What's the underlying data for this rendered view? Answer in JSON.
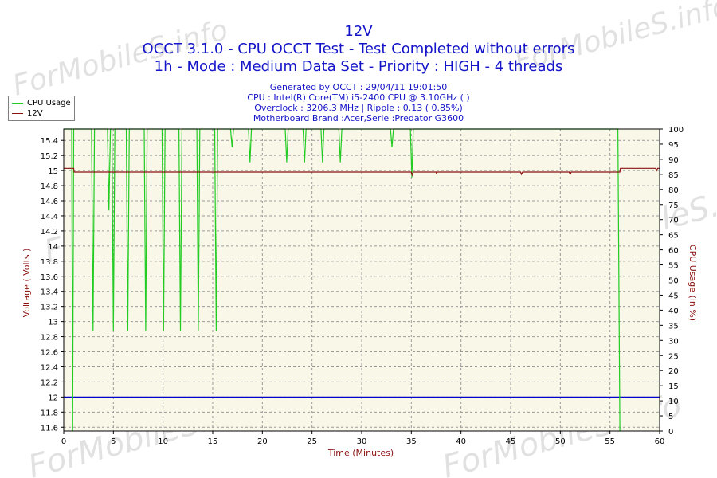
{
  "chart_data": {
    "type": "line",
    "title": "12V",
    "subtitle": [
      "OCCT 3.1.0 - CPU OCCT Test - Test Completed without errors",
      "1h - Mode : Medium Data Set - Priority : HIGH - 4 threads"
    ],
    "info": [
      "Generated by OCCT : 29/04/11 19:01:50",
      "CPU : Intel(R) Core(TM) i5-2400 CPU @ 3.10GHz (  )",
      "Overclock : 3206.3 MHz | Ripple : 0.13 ( 0.85%)",
      "Motherboard Brand :Acer,Serie :Predator G3600"
    ],
    "xlabel": "Time (Minutes)",
    "ylabel": "Voltage ( Volts )",
    "y2label": "CPU Usage (in %)",
    "xlim": [
      0,
      60
    ],
    "ylim": [
      11.55,
      15.55
    ],
    "y2lim": [
      0,
      100
    ],
    "xticks": [
      0,
      5,
      10,
      15,
      20,
      25,
      30,
      35,
      40,
      45,
      50,
      55,
      60
    ],
    "yticks": [
      11.6,
      11.8,
      12,
      12.2,
      12.4,
      12.6,
      12.8,
      13,
      13.2,
      13.4,
      13.6,
      13.8,
      14,
      14.2,
      14.4,
      14.6,
      14.8,
      15,
      15.2,
      15.4
    ],
    "ytick_labels": [
      "11.6",
      "11.8",
      "12",
      "12.2",
      "12.4",
      "12.6",
      "12.8",
      "13",
      "13.2",
      "13.4",
      "13.6",
      "13.8",
      "14",
      "14.2",
      "14.4",
      "14.6",
      "14.8",
      "15",
      "15.2",
      "15.4"
    ],
    "y2ticks": [
      0,
      5,
      10,
      15,
      20,
      25,
      30,
      35,
      40,
      45,
      50,
      55,
      60,
      65,
      70,
      75,
      80,
      85,
      90,
      95,
      100
    ],
    "grid": true,
    "legend": "top-left",
    "reference_line": {
      "y": 12,
      "color": "#0000c8"
    },
    "series": [
      {
        "name": "CPU Usage",
        "axis": "right",
        "color": "#22cc22",
        "points": [
          [
            0,
            100
          ],
          [
            0.8,
            100
          ],
          [
            0.9,
            0
          ],
          [
            1.0,
            100
          ],
          [
            2.8,
            100
          ],
          [
            2.95,
            33
          ],
          [
            3.1,
            100
          ],
          [
            4.4,
            100
          ],
          [
            4.55,
            73
          ],
          [
            4.7,
            100
          ],
          [
            4.85,
            100
          ],
          [
            5.0,
            33
          ],
          [
            5.15,
            100
          ],
          [
            6.3,
            100
          ],
          [
            6.45,
            33
          ],
          [
            6.6,
            100
          ],
          [
            8.1,
            100
          ],
          [
            8.25,
            33
          ],
          [
            8.4,
            100
          ],
          [
            9.9,
            100
          ],
          [
            10.05,
            33
          ],
          [
            10.2,
            100
          ],
          [
            11.6,
            100
          ],
          [
            11.75,
            33
          ],
          [
            11.9,
            100
          ],
          [
            13.4,
            100
          ],
          [
            13.55,
            33
          ],
          [
            13.7,
            100
          ],
          [
            15.2,
            100
          ],
          [
            15.35,
            33
          ],
          [
            15.5,
            100
          ],
          [
            16.8,
            100
          ],
          [
            16.95,
            94
          ],
          [
            17.1,
            100
          ],
          [
            18.6,
            100
          ],
          [
            18.75,
            89
          ],
          [
            18.9,
            100
          ],
          [
            22.3,
            100
          ],
          [
            22.45,
            89
          ],
          [
            22.6,
            100
          ],
          [
            24.1,
            100
          ],
          [
            24.25,
            89
          ],
          [
            24.4,
            100
          ],
          [
            25.9,
            100
          ],
          [
            26.05,
            89
          ],
          [
            26.2,
            100
          ],
          [
            27.7,
            100
          ],
          [
            27.85,
            89
          ],
          [
            28.0,
            100
          ],
          [
            32.9,
            100
          ],
          [
            33.05,
            94
          ],
          [
            33.2,
            100
          ],
          [
            34.9,
            100
          ],
          [
            35.05,
            84
          ],
          [
            35.2,
            100
          ],
          [
            55.8,
            100
          ],
          [
            56.0,
            0
          ]
        ]
      },
      {
        "name": "12V",
        "axis": "left",
        "color": "#8b1010",
        "points": [
          [
            0,
            15.03
          ],
          [
            1.0,
            15.03
          ],
          [
            1.05,
            14.98
          ],
          [
            35.0,
            14.98
          ],
          [
            35.08,
            14.94
          ],
          [
            35.2,
            14.98
          ],
          [
            37.5,
            14.98
          ],
          [
            37.55,
            14.95
          ],
          [
            37.6,
            14.98
          ],
          [
            46.0,
            14.98
          ],
          [
            46.08,
            14.95
          ],
          [
            46.2,
            14.98
          ],
          [
            50.9,
            14.98
          ],
          [
            50.98,
            14.95
          ],
          [
            51.1,
            14.98
          ],
          [
            56.0,
            14.98
          ],
          [
            56.05,
            15.03
          ],
          [
            59.6,
            15.03
          ],
          [
            59.7,
            15.0
          ],
          [
            59.8,
            15.03
          ],
          [
            60,
            15.03
          ]
        ]
      }
    ]
  },
  "watermark": "ForMobileS.info",
  "plot_background": "#f9f7e8"
}
